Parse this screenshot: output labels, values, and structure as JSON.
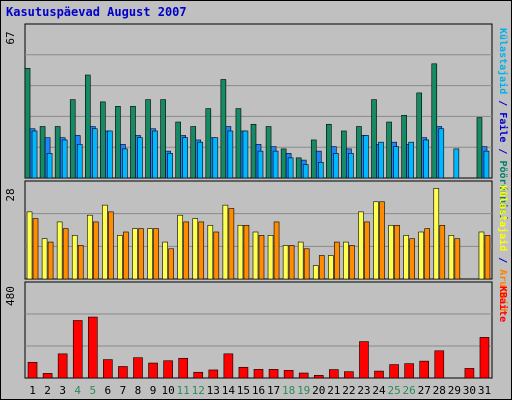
{
  "chart_data": {
    "title": "Kasutuspäevad August 2007",
    "type": "bar",
    "days": [
      {
        "label": "1",
        "weekend": false
      },
      {
        "label": "2",
        "weekend": false
      },
      {
        "label": "3",
        "weekend": false
      },
      {
        "label": "4",
        "weekend": true
      },
      {
        "label": "5",
        "weekend": true
      },
      {
        "label": "6",
        "weekend": false
      },
      {
        "label": "7",
        "weekend": false
      },
      {
        "label": "8",
        "weekend": false
      },
      {
        "label": "9",
        "weekend": false
      },
      {
        "label": "10",
        "weekend": false
      },
      {
        "label": "11",
        "weekend": true
      },
      {
        "label": "12",
        "weekend": true
      },
      {
        "label": "13",
        "weekend": false
      },
      {
        "label": "14",
        "weekend": false
      },
      {
        "label": "15",
        "weekend": false
      },
      {
        "label": "16",
        "weekend": false
      },
      {
        "label": "17",
        "weekend": false
      },
      {
        "label": "18",
        "weekend": true
      },
      {
        "label": "19",
        "weekend": true
      },
      {
        "label": "20",
        "weekend": false
      },
      {
        "label": "21",
        "weekend": false
      },
      {
        "label": "22",
        "weekend": false
      },
      {
        "label": "23",
        "weekend": false
      },
      {
        "label": "24",
        "weekend": false
      },
      {
        "label": "25",
        "weekend": true
      },
      {
        "label": "26",
        "weekend": true
      },
      {
        "label": "27",
        "weekend": false
      },
      {
        "label": "28",
        "weekend": false
      },
      {
        "label": "29",
        "weekend": false
      },
      {
        "label": "30",
        "weekend": false
      },
      {
        "label": "31",
        "weekend": false
      }
    ],
    "panels": [
      {
        "max_label": "67",
        "ymax": 67,
        "right_label": [
          {
            "text": "Pöördumisi",
            "color": "#00806a"
          },
          {
            "text": " / ",
            "color": "#0000cc"
          },
          {
            "text": "Faile",
            "color": "#0000cc"
          },
          {
            "text": " / ",
            "color": "#0000cc"
          },
          {
            "text": "Külastajaid",
            "color": "#00b0e8"
          }
        ],
        "series": [
          {
            "name": "Pöördumisi",
            "color": "#158a64",
            "values": [
              49,
              23,
              23,
              35,
              46,
              34,
              32,
              32,
              35,
              35,
              25,
              23,
              31,
              44,
              31,
              24,
              23,
              13,
              9,
              17,
              24,
              21,
              23,
              35,
              25,
              28,
              38,
              51,
              0,
              0,
              27
            ]
          },
          {
            "name": "Faile",
            "color": "#1d86ff",
            "values": [
              22,
              18,
              18,
              19,
              23,
              21,
              15,
              19,
              22,
              12,
              19,
              17,
              18,
              23,
              21,
              15,
              14,
              11,
              8,
              12,
              14,
              13,
              19,
              15,
              16,
              15,
              18,
              23,
              0,
              0,
              14
            ]
          },
          {
            "name": "Külastajaid",
            "color": "#00b8ff",
            "values": [
              21,
              11,
              17,
              15,
              22,
              21,
              13,
              18,
              21,
              11,
              18,
              16,
              18,
              21,
              21,
              12,
              12,
              9,
              6,
              7,
              11,
              11,
              19,
              16,
              14,
              16,
              17,
              22,
              13,
              0,
              12
            ]
          }
        ]
      },
      {
        "max_label": "28",
        "ymax": 28,
        "right_label": [
          {
            "text": "Aruteid",
            "color": "#ff8000"
          },
          {
            "text": " / ",
            "color": "#0000cc"
          },
          {
            "text": "Külastajaid",
            "color": "#ffff00"
          }
        ],
        "series": [
          {
            "name": "Külastajaid",
            "color": "#ffff50",
            "values": [
              20,
              12,
              17,
              13,
              19,
              22,
              13,
              15,
              15,
              11,
              19,
              18,
              16,
              22,
              16,
              14,
              13,
              10,
              11,
              4,
              7,
              11,
              20,
              23,
              16,
              13,
              14,
              27,
              13,
              0,
              14
            ]
          },
          {
            "name": "Aruteid",
            "color": "#ff8c00",
            "values": [
              18,
              11,
              15,
              10,
              17,
              20,
              14,
              15,
              15,
              9,
              17,
              17,
              14,
              21,
              16,
              13,
              17,
              10,
              9,
              7,
              11,
              10,
              17,
              23,
              16,
              12,
              15,
              16,
              12,
              0,
              13
            ]
          }
        ]
      },
      {
        "max_label": "480",
        "ymax": 480,
        "right_label": [
          {
            "text": "KBaite",
            "color": "#ff0000"
          }
        ],
        "series": [
          {
            "name": "KBaite",
            "color": "#ff0000",
            "values": [
              82,
              24,
              126,
              300,
              318,
              96,
              60,
              106,
              78,
              90,
              103,
              30,
              42,
              126,
              56,
              45,
              45,
              40,
              26,
              14,
              44,
              33,
              190,
              36,
              70,
              75,
              88,
              142,
              0,
              50,
              212
            ]
          }
        ]
      }
    ]
  }
}
